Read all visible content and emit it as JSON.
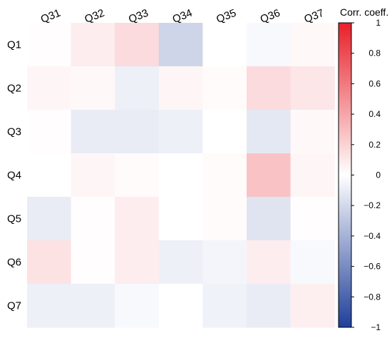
{
  "chart_data": {
    "type": "heatmap",
    "title": "",
    "xlabel": "",
    "ylabel": "",
    "columns": [
      "Q31",
      "Q32",
      "Q33",
      "Q34",
      "Q35",
      "Q36",
      "Q37"
    ],
    "rows": [
      "Q1",
      "Q2",
      "Q3",
      "Q4",
      "Q5",
      "Q6",
      "Q7"
    ],
    "values": [
      [
        0.01,
        0.08,
        0.16,
        -0.22,
        0.0,
        -0.03,
        0.03
      ],
      [
        0.04,
        0.03,
        -0.08,
        0.04,
        0.02,
        0.16,
        0.11
      ],
      [
        0.01,
        -0.1,
        -0.1,
        -0.08,
        0.0,
        -0.12,
        0.03
      ],
      [
        0.0,
        0.04,
        0.02,
        0.0,
        0.02,
        0.27,
        0.04
      ],
      [
        -0.1,
        0.01,
        0.08,
        0.0,
        0.02,
        -0.14,
        0.01
      ],
      [
        0.13,
        0.01,
        0.08,
        -0.08,
        -0.05,
        0.08,
        -0.03
      ],
      [
        -0.08,
        -0.08,
        -0.03,
        0.0,
        -0.07,
        -0.1,
        0.07
      ]
    ],
    "colorbar": {
      "title": "Corr. coeff.",
      "min": -1,
      "max": 1,
      "ticks": [
        1,
        0.8,
        0.6,
        0.4,
        0.2,
        0,
        -0.2,
        -0.4,
        -0.6,
        -0.8,
        -1
      ],
      "tick_labels": [
        "1",
        "0.8",
        "0.6",
        "0.4",
        "0.2",
        "0",
        "−0.2",
        "−0.4",
        "−0.6",
        "−0.8",
        "−1"
      ],
      "colors": {
        "negative": "#1f3f99",
        "zero": "#ffffff",
        "positive": "#e8202a"
      }
    }
  }
}
